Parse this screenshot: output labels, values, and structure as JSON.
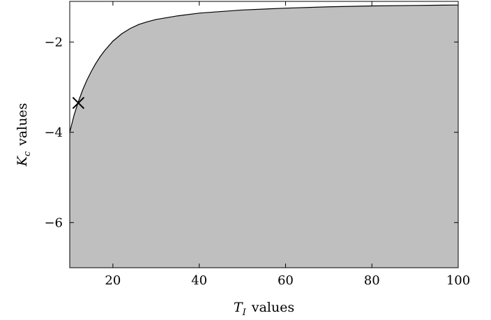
{
  "chart_data": {
    "type": "area",
    "xlabel": {
      "var": "T",
      "sub": "I",
      "suffix": "values"
    },
    "ylabel": {
      "var": "K",
      "sub": "c",
      "suffix": "values"
    },
    "xlim": [
      10,
      100
    ],
    "ylim": [
      -7,
      -1.1
    ],
    "x_ticks": [
      20,
      40,
      60,
      80,
      100
    ],
    "y_ticks": [
      -2,
      -4,
      -6
    ],
    "y_tick_labels": [
      "−2",
      "−4",
      "−6"
    ],
    "grid": false,
    "fill_color": "#bfbfbf",
    "line_color": "#000000",
    "series": [
      {
        "x": [
          10,
          11,
          12,
          13,
          14,
          15,
          16,
          17,
          18,
          20,
          22,
          24,
          26,
          28,
          30,
          35,
          40,
          50,
          60,
          70,
          80,
          90,
          100
        ],
        "y": [
          -4.0,
          -3.62,
          -3.32,
          -3.06,
          -2.84,
          -2.65,
          -2.48,
          -2.33,
          -2.2,
          -1.98,
          -1.82,
          -1.7,
          -1.61,
          -1.55,
          -1.5,
          -1.42,
          -1.36,
          -1.29,
          -1.25,
          -1.22,
          -1.2,
          -1.19,
          -1.18
        ]
      }
    ],
    "marker": {
      "x": 12,
      "y": -3.35,
      "symbol": "x"
    }
  }
}
